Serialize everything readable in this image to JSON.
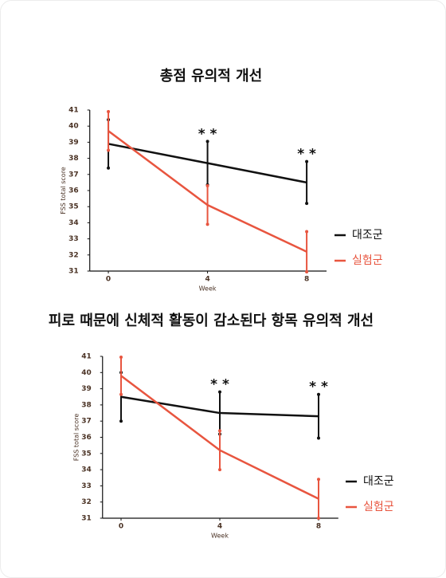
{
  "chart_data": [
    {
      "type": "line",
      "title": "총점 유의적 개선",
      "xlabel": "Week",
      "ylabel": "FSS total score",
      "x": [
        0,
        4,
        8
      ],
      "xlim": [
        -0.75,
        8.8
      ],
      "xticks": [
        0,
        4,
        8
      ],
      "ylim": [
        31,
        41
      ],
      "yticks": [
        31,
        32,
        33,
        34,
        35,
        36,
        37,
        38,
        39,
        40,
        41
      ],
      "legend": "right",
      "series": [
        {
          "name": "대조군",
          "color": "#111111",
          "values": [
            38.9,
            37.7,
            36.5
          ],
          "errors": [
            1.5,
            1.35,
            1.3
          ]
        },
        {
          "name": "실험군",
          "color": "#e8553f",
          "values": [
            39.7,
            35.1,
            32.2
          ],
          "errors": [
            1.2,
            1.2,
            1.25
          ]
        }
      ],
      "annotations": [
        {
          "x": 4,
          "text": "* *"
        },
        {
          "x": 8,
          "text": "* *"
        }
      ]
    },
    {
      "type": "line",
      "title": "피로 때문에 신체적 활동이 감소된다 항목 유의적 개선",
      "xlabel": "Week",
      "ylabel": "FSS total score",
      "x": [
        0,
        4,
        8
      ],
      "xlim": [
        -0.75,
        8.8
      ],
      "xticks": [
        0,
        4,
        8
      ],
      "ylim": [
        31,
        41
      ],
      "yticks": [
        31,
        32,
        33,
        34,
        35,
        36,
        37,
        38,
        39,
        40,
        41
      ],
      "legend": "right",
      "series": [
        {
          "name": "대조군",
          "color": "#111111",
          "values": [
            38.5,
            37.5,
            37.3
          ],
          "errors": [
            1.5,
            1.3,
            1.35
          ]
        },
        {
          "name": "실험군",
          "color": "#e8553f",
          "values": [
            39.8,
            35.2,
            32.2
          ],
          "errors": [
            1.15,
            1.2,
            1.2
          ]
        }
      ],
      "annotations": [
        {
          "x": 4,
          "text": "* *"
        },
        {
          "x": 8,
          "text": "* *"
        }
      ]
    }
  ]
}
